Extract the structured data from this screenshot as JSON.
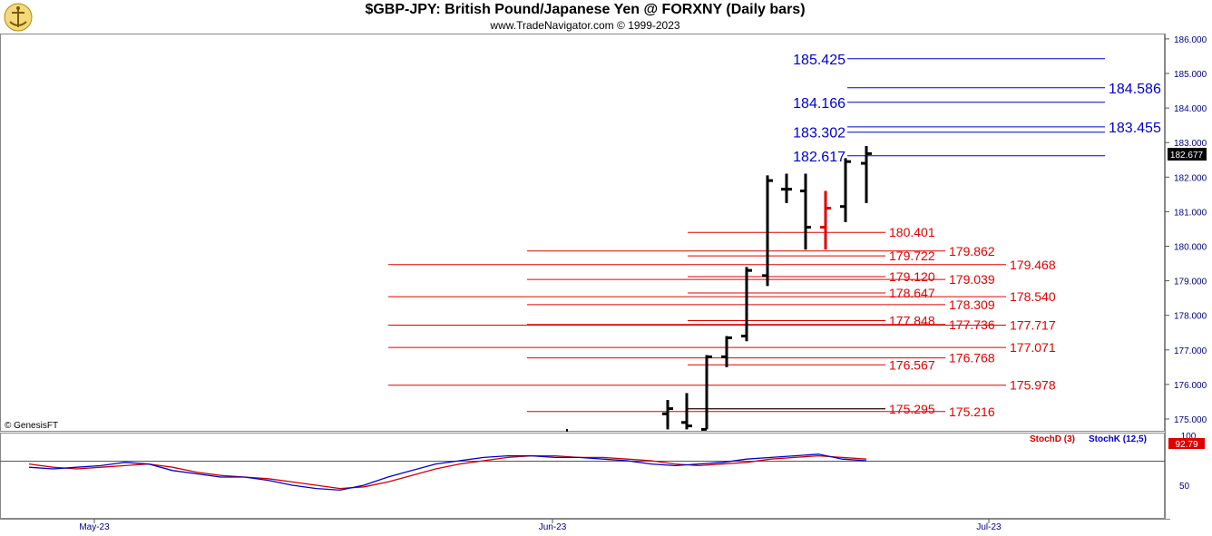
{
  "header": {
    "title": "$GBP-JPY:  British Pound/Japanese Yen @ FORXNY  (Daily bars)",
    "subtitle": "www.TradeNavigator.com © 1999-2023",
    "copyright": "© GenesisFT"
  },
  "colors": {
    "bar": "#000000",
    "down_bar": "#e00000",
    "red_level": "#e00000",
    "blue_level": "#0000cc",
    "stoch_d": "#cc0000",
    "stoch_k": "#0000cc",
    "axis_text": "#000080",
    "last_price_bg": "#000000"
  },
  "price_axis": {
    "ticks": [
      "175.000",
      "176.000",
      "177.000",
      "178.000",
      "179.000",
      "180.000",
      "181.000",
      "182.000",
      "183.000",
      "184.000",
      "185.000",
      "186.000"
    ],
    "last_price": "182.677"
  },
  "time_axis": {
    "labels": [
      "May-23",
      "Jun-23",
      "Jul-23"
    ]
  },
  "indicator": {
    "stochd_label": "StochD (3)",
    "stochk_label": "StochK (12,5)",
    "axis_ticks": [
      "100",
      "50"
    ],
    "last_value": "92.79"
  },
  "chart_data": {
    "type": "ohlc",
    "title": "$GBP-JPY:  British Pound/Japanese Yen @ FORXNY  (Daily bars)",
    "ylim": [
      174.7,
      186.2
    ],
    "bars": [
      {
        "i": 0,
        "open": 175.15,
        "high": 175.55,
        "low": 174.7,
        "close": 175.3,
        "down": false
      },
      {
        "i": 1,
        "open": 174.9,
        "high": 175.75,
        "low": 174.7,
        "close": 174.8,
        "down": false
      },
      {
        "i": 2,
        "open": 174.7,
        "high": 176.85,
        "low": 174.7,
        "close": 176.8,
        "down": false
      },
      {
        "i": 3,
        "open": 176.8,
        "high": 177.4,
        "low": 176.5,
        "close": 177.35,
        "down": false
      },
      {
        "i": 4,
        "open": 177.4,
        "high": 179.4,
        "low": 177.25,
        "close": 179.3,
        "down": false
      },
      {
        "i": 5,
        "open": 179.15,
        "high": 182.05,
        "low": 178.85,
        "close": 181.9,
        "down": false
      },
      {
        "i": 6,
        "open": 181.65,
        "high": 182.1,
        "low": 181.25,
        "close": 181.65,
        "down": false
      },
      {
        "i": 7,
        "open": 181.6,
        "high": 182.1,
        "low": 179.9,
        "close": 180.55,
        "down": false
      },
      {
        "i": 8,
        "open": 180.55,
        "high": 181.6,
        "low": 179.9,
        "close": 181.1,
        "down": true
      },
      {
        "i": 9,
        "open": 181.15,
        "high": 182.55,
        "low": 180.7,
        "close": 182.45,
        "down": false
      },
      {
        "i": 10,
        "open": 182.4,
        "high": 182.9,
        "low": 181.25,
        "close": 182.68,
        "down": false
      }
    ],
    "blue_levels": [
      {
        "value": 185.425,
        "label": "185.425",
        "label_side": "left"
      },
      {
        "value": 184.586,
        "label": "184.586",
        "label_side": "right"
      },
      {
        "value": 184.166,
        "label": "184.166",
        "label_side": "left"
      },
      {
        "value": 183.455,
        "label": "183.455",
        "label_side": "right"
      },
      {
        "value": 183.302,
        "label": "183.302",
        "label_side": "left"
      },
      {
        "value": 182.617,
        "label": "182.617",
        "label_side": "left"
      }
    ],
    "red_levels": [
      {
        "value": 180.401,
        "label": "180.401",
        "group": "A"
      },
      {
        "value": 179.862,
        "label": "179.862",
        "group": "B"
      },
      {
        "value": 179.722,
        "label": "179.722",
        "group": "A"
      },
      {
        "value": 179.468,
        "label": "179.468",
        "group": "C"
      },
      {
        "value": 179.12,
        "label": "179.120",
        "group": "A"
      },
      {
        "value": 179.039,
        "label": "179.039",
        "group": "B"
      },
      {
        "value": 178.647,
        "label": "178.647",
        "group": "A"
      },
      {
        "value": 178.54,
        "label": "178.540",
        "group": "C"
      },
      {
        "value": 178.309,
        "label": "178.309",
        "group": "B"
      },
      {
        "value": 177.848,
        "label": "177.848",
        "group": "A"
      },
      {
        "value": 177.736,
        "label": "177.736",
        "group": "B"
      },
      {
        "value": 177.717,
        "label": "177.717",
        "group": "C"
      },
      {
        "value": 177.071,
        "label": "177.071",
        "group": "C"
      },
      {
        "value": 176.768,
        "label": "176.768",
        "group": "B"
      },
      {
        "value": 176.567,
        "label": "176.567",
        "group": "A"
      },
      {
        "value": 175.978,
        "label": "175.978",
        "group": "C"
      },
      {
        "value": 175.295,
        "label": "175.295",
        "group": "A"
      },
      {
        "value": 175.216,
        "label": "175.216",
        "group": "B"
      }
    ],
    "stoch_ylim": [
      0,
      100
    ],
    "stoch_k": [
      88,
      87,
      88,
      89,
      91,
      90,
      86,
      84,
      82,
      82,
      80,
      77,
      75,
      74,
      77,
      82,
      86,
      90,
      92,
      94,
      95,
      95,
      94,
      94,
      93,
      92,
      90,
      89,
      90,
      91,
      93,
      94,
      95,
      96,
      93,
      92
    ],
    "stoch_d": [
      90,
      88,
      87,
      88,
      89,
      90,
      88,
      85,
      83,
      82,
      81,
      79,
      77,
      75,
      76,
      79,
      83,
      87,
      90,
      92,
      94,
      95,
      95,
      94,
      94,
      93,
      92,
      90,
      89,
      90,
      91,
      93,
      94,
      95,
      94,
      93
    ]
  }
}
